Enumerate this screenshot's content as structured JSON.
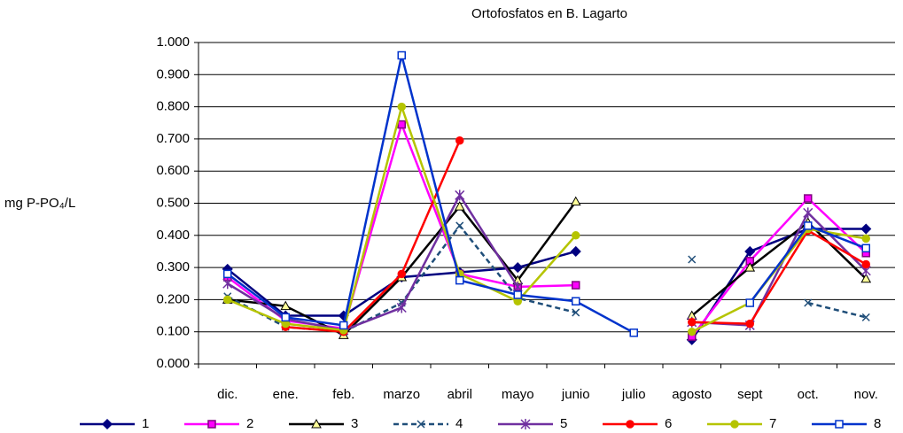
{
  "chart_data": {
    "type": "line",
    "title": "Ortofosfatos en B. Lagarto",
    "y_label": "mg P-PO₄/L",
    "categories": [
      "dic.",
      "ene.",
      "feb.",
      "marzo",
      "abril",
      "mayo",
      "junio",
      "julio",
      "agosto",
      "sept",
      "oct.",
      "nov."
    ],
    "ylim": [
      0,
      1
    ],
    "yticks": [
      {
        "value": 0,
        "label": "0.000"
      },
      {
        "value": 0.1,
        "label": "0.100"
      },
      {
        "value": 0.2,
        "label": "0.200"
      },
      {
        "value": 0.3,
        "label": "0.300"
      },
      {
        "value": 0.4,
        "label": "0.400"
      },
      {
        "value": 0.5,
        "label": "0.500"
      },
      {
        "value": 0.6,
        "label": "0.600"
      },
      {
        "value": 0.7,
        "label": "0.700"
      },
      {
        "value": 0.8,
        "label": "0.800"
      },
      {
        "value": 0.9,
        "label": "0.900"
      },
      {
        "value": 1,
        "label": "1.000"
      }
    ],
    "grid": true,
    "legend": "bottom",
    "series": [
      {
        "name": "1",
        "color": "#000080",
        "marker": "diamond",
        "dash": false,
        "values": [
          0.295,
          0.15,
          0.15,
          0.27,
          0.285,
          0.3,
          0.35,
          null,
          0.075,
          0.35,
          0.42,
          0.42
        ]
      },
      {
        "name": "2",
        "color": "#ff00ff",
        "marker": "square",
        "dash": false,
        "values": [
          0.27,
          0.135,
          0.11,
          0.745,
          0.28,
          0.24,
          0.245,
          null,
          0.085,
          0.32,
          0.515,
          0.345
        ]
      },
      {
        "name": "3",
        "color": "#000000",
        "marker": "triangle",
        "dash": false,
        "values": [
          0.2,
          0.18,
          0.09,
          0.27,
          0.49,
          0.26,
          0.505,
          null,
          0.15,
          0.3,
          0.44,
          0.265
        ]
      },
      {
        "name": "4",
        "color": "#1f4e79",
        "marker": "x",
        "dash": true,
        "values": [
          0.21,
          0.115,
          0.1,
          0.19,
          0.43,
          0.205,
          0.16,
          null,
          0.325,
          null,
          0.19,
          0.145
        ]
      },
      {
        "name": "5",
        "color": "#7030a0",
        "marker": "star",
        "dash": false,
        "values": [
          0.25,
          0.14,
          0.105,
          0.175,
          0.525,
          0.24,
          null,
          null,
          0.13,
          0.12,
          0.47,
          0.29
        ]
      },
      {
        "name": "6",
        "color": "#ff0000",
        "marker": "circle",
        "dash": false,
        "values": [
          null,
          0.115,
          0.1,
          0.28,
          0.695,
          null,
          null,
          null,
          0.13,
          0.125,
          0.415,
          0.31
        ]
      },
      {
        "name": "7",
        "color": "#b5c400",
        "marker": "circle",
        "dash": false,
        "values": [
          0.2,
          0.125,
          0.105,
          0.8,
          0.28,
          0.195,
          0.4,
          null,
          0.1,
          0.19,
          0.42,
          0.39
        ]
      },
      {
        "name": "8",
        "color": "#0033cc",
        "marker": "opensquare",
        "dash": false,
        "values": [
          0.28,
          0.145,
          0.12,
          0.96,
          0.26,
          0.215,
          0.195,
          0.097,
          null,
          0.19,
          0.43,
          0.36
        ]
      }
    ]
  }
}
